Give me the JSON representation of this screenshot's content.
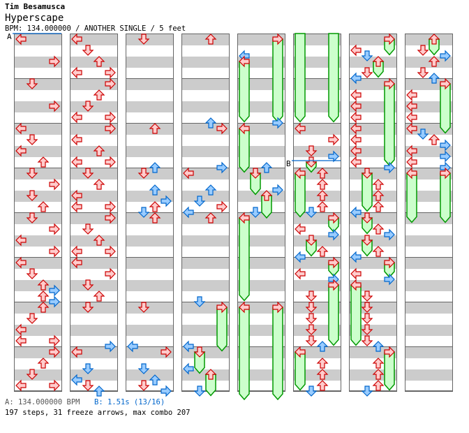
{
  "header": {
    "artist": "Tim Besamusca",
    "song": "Hyperscape",
    "info": "BPM: 134.000000 / ANOTHER SINGLE / 5 feet"
  },
  "footer": {
    "marker_a": "A: 134.000000 BPM",
    "marker_b": "B: 1.51s (13/16)",
    "stats": "197 steps, 31 freeze arrows, max combo 207"
  },
  "colors": {
    "quarter_fill": "#ffcccc",
    "quarter_stroke": "#cc0000",
    "eighth_fill": "#99ccff",
    "eighth_stroke": "#0066cc",
    "freeze_fill": "#ccffcc",
    "freeze_stroke": "#009900",
    "marker": "#0066cc"
  },
  "chart_data": {
    "type": "step-chart",
    "beats_per_column": 32,
    "lanes": [
      "L",
      "D",
      "U",
      "R"
    ],
    "markers": [
      {
        "label": "A",
        "column": 0,
        "beat": 0
      },
      {
        "label": "B",
        "column": 5,
        "beat": 11.375
      }
    ],
    "columns": [
      [
        [
          0,
          "L"
        ],
        [
          2,
          "R"
        ],
        [
          4,
          "D"
        ],
        [
          6,
          "R"
        ],
        [
          8,
          "L"
        ],
        [
          9,
          "D"
        ],
        [
          10,
          "L"
        ],
        [
          11,
          "U"
        ],
        [
          12,
          "D"
        ],
        [
          13,
          "R"
        ],
        [
          14,
          "D"
        ],
        [
          15,
          "U"
        ],
        [
          16,
          "D"
        ],
        [
          17,
          "R"
        ],
        [
          18,
          "L"
        ],
        [
          19,
          "R"
        ],
        [
          20,
          "L"
        ],
        [
          21,
          "D"
        ],
        [
          22,
          "U"
        ],
        [
          22.5,
          "R"
        ],
        [
          23,
          "U"
        ],
        [
          23.5,
          "R"
        ],
        [
          24,
          "U"
        ],
        [
          25,
          "D"
        ],
        [
          26,
          "L"
        ],
        [
          27,
          "L"
        ],
        [
          27,
          "R"
        ],
        [
          28,
          "R"
        ],
        [
          29,
          "U"
        ],
        [
          30,
          "D"
        ],
        [
          31,
          "L"
        ],
        [
          31,
          "R"
        ]
      ],
      [
        [
          0,
          "L"
        ],
        [
          1,
          "D"
        ],
        [
          2,
          "U"
        ],
        [
          3,
          "L"
        ],
        [
          3,
          "R"
        ],
        [
          4,
          "R"
        ],
        [
          5,
          "U"
        ],
        [
          6,
          "D"
        ],
        [
          7,
          "L"
        ],
        [
          7,
          "R"
        ],
        [
          8,
          "R"
        ],
        [
          9,
          "L"
        ],
        [
          10,
          "U"
        ],
        [
          11,
          "L"
        ],
        [
          11,
          "R"
        ],
        [
          12,
          "D"
        ],
        [
          13,
          "U"
        ],
        [
          14,
          "L"
        ],
        [
          15,
          "L"
        ],
        [
          15,
          "R"
        ],
        [
          16,
          "R"
        ],
        [
          17,
          "D"
        ],
        [
          18,
          "U"
        ],
        [
          19,
          "L"
        ],
        [
          19,
          "R"
        ],
        [
          20,
          "L"
        ],
        [
          21,
          "R"
        ],
        [
          22,
          "D"
        ],
        [
          23,
          "U"
        ],
        [
          24,
          "D"
        ],
        [
          27.5,
          "R"
        ],
        [
          28,
          "L"
        ],
        [
          29.5,
          "D"
        ],
        [
          30.5,
          "L"
        ],
        [
          31,
          "D"
        ],
        [
          31.5,
          "U"
        ]
      ],
      [
        [
          0,
          "D"
        ],
        [
          8,
          "U"
        ],
        [
          11.5,
          "U"
        ],
        [
          12,
          "D"
        ],
        [
          13.5,
          "U"
        ],
        [
          14.5,
          "R"
        ],
        [
          15,
          "U"
        ],
        [
          15.5,
          "D"
        ],
        [
          16,
          "U"
        ],
        [
          24,
          "D"
        ],
        [
          27.5,
          "L"
        ],
        [
          28,
          "R"
        ],
        [
          29.5,
          "D"
        ],
        [
          30.5,
          "U"
        ],
        [
          31,
          "D"
        ],
        [
          31.5,
          "R"
        ]
      ],
      [
        [
          0,
          "U"
        ],
        [
          7.5,
          "U"
        ],
        [
          8,
          "R"
        ],
        [
          11.5,
          "R"
        ],
        [
          12,
          "L"
        ],
        [
          13.5,
          "U"
        ],
        [
          14.5,
          "D"
        ],
        [
          15,
          "R"
        ],
        [
          15.5,
          "L"
        ],
        [
          16,
          "U"
        ],
        [
          23.5,
          "D"
        ],
        [
          24,
          "R",
          27.4
        ],
        [
          27.5,
          "L"
        ],
        [
          28,
          "D",
          29.4
        ],
        [
          29.5,
          "L"
        ],
        [
          30,
          "U",
          31.4
        ],
        [
          31.5,
          "D"
        ]
      ],
      [
        [
          0,
          "R",
          6.9
        ],
        [
          1.5,
          "L"
        ],
        [
          2,
          "L",
          6.9
        ],
        [
          7.5,
          "R"
        ],
        [
          8,
          "L",
          11.4
        ],
        [
          11.5,
          "U"
        ],
        [
          12,
          "D",
          13.4
        ],
        [
          13.5,
          "R"
        ],
        [
          14,
          "U",
          15.5
        ],
        [
          15.5,
          "D"
        ],
        [
          16,
          "L",
          22.9
        ],
        [
          24,
          "L",
          32.5
        ],
        [
          24,
          "R",
          32.5
        ]
      ],
      [
        [
          -1,
          "L",
          6.9
        ],
        [
          -1,
          "R",
          6.9
        ],
        [
          8,
          "L"
        ],
        [
          9,
          "R"
        ],
        [
          10,
          "D"
        ],
        [
          10.5,
          "R"
        ],
        [
          11,
          "D",
          11.4
        ],
        [
          12,
          "L",
          15.4
        ],
        [
          12,
          "U"
        ],
        [
          13,
          "U"
        ],
        [
          14,
          "U"
        ],
        [
          15,
          "U"
        ],
        [
          15.5,
          "D"
        ],
        [
          16,
          "R",
          16.75
        ],
        [
          17,
          "L"
        ],
        [
          17.5,
          "R"
        ],
        [
          18,
          "D",
          18.9
        ],
        [
          19,
          "U"
        ],
        [
          19.5,
          "L"
        ],
        [
          20,
          "R",
          20.7
        ],
        [
          21,
          "L"
        ],
        [
          21.5,
          "R"
        ],
        [
          22,
          "R",
          26.9
        ],
        [
          23,
          "D"
        ],
        [
          24,
          "D"
        ],
        [
          25,
          "D"
        ],
        [
          26,
          "D"
        ],
        [
          27,
          "D"
        ],
        [
          27.5,
          "U"
        ],
        [
          28,
          "L",
          30.9
        ],
        [
          29,
          "U"
        ],
        [
          30,
          "U"
        ],
        [
          31,
          "U"
        ],
        [
          31.5,
          "D"
        ]
      ],
      [
        [
          0,
          "R",
          0.9
        ],
        [
          1,
          "L"
        ],
        [
          1.5,
          "D"
        ],
        [
          2,
          "U",
          2.9
        ],
        [
          3,
          "D"
        ],
        [
          3.5,
          "L"
        ],
        [
          4,
          "R",
          10.8
        ],
        [
          5,
          "L"
        ],
        [
          6,
          "L"
        ],
        [
          7,
          "L"
        ],
        [
          8,
          "L"
        ],
        [
          9,
          "L"
        ],
        [
          10,
          "L"
        ],
        [
          11,
          "L"
        ],
        [
          11.5,
          "R"
        ],
        [
          12,
          "D",
          14.9
        ],
        [
          13,
          "U"
        ],
        [
          14,
          "U"
        ],
        [
          15,
          "U"
        ],
        [
          15.5,
          "L"
        ],
        [
          16,
          "D",
          16.9
        ],
        [
          17,
          "U"
        ],
        [
          17.5,
          "R"
        ],
        [
          18,
          "D",
          18.9
        ],
        [
          19,
          "U"
        ],
        [
          19.5,
          "L"
        ],
        [
          20,
          "R",
          20.8
        ],
        [
          21,
          "L"
        ],
        [
          21.5,
          "R"
        ],
        [
          22,
          "L",
          26.9
        ],
        [
          23,
          "D"
        ],
        [
          24,
          "D"
        ],
        [
          25,
          "D"
        ],
        [
          26,
          "D"
        ],
        [
          27,
          "D"
        ],
        [
          27.5,
          "U"
        ],
        [
          28,
          "R",
          30.9
        ],
        [
          29,
          "U"
        ],
        [
          30,
          "U"
        ],
        [
          31,
          "U"
        ],
        [
          31.5,
          "D"
        ]
      ],
      [
        [
          0,
          "U",
          0.9
        ],
        [
          1,
          "D"
        ],
        [
          1.5,
          "R"
        ],
        [
          2,
          "U"
        ],
        [
          3,
          "D"
        ],
        [
          3.5,
          "U"
        ],
        [
          4,
          "R",
          7.9
        ],
        [
          5,
          "L"
        ],
        [
          6,
          "L"
        ],
        [
          7,
          "L"
        ],
        [
          8,
          "L"
        ],
        [
          8.5,
          "D"
        ],
        [
          9,
          "U"
        ],
        [
          9.5,
          "R"
        ],
        [
          10,
          "L"
        ],
        [
          10.5,
          "R"
        ],
        [
          11,
          "L"
        ],
        [
          11.5,
          "R"
        ],
        [
          12,
          "L",
          15.9
        ],
        [
          12,
          "R",
          15.9
        ]
      ]
    ]
  }
}
